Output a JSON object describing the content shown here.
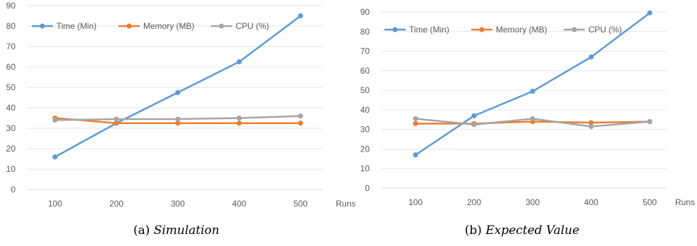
{
  "chart_data": [
    {
      "type": "line",
      "x": [
        100,
        200,
        300,
        400,
        500
      ],
      "xlabel": "Runs",
      "ylim": [
        0,
        90
      ],
      "yticks": [
        0,
        10,
        20,
        30,
        40,
        50,
        60,
        70,
        80,
        90
      ],
      "grid": true,
      "legend": "top-left",
      "caption_prefix": "(a)",
      "caption_title": "Simulation",
      "series": [
        {
          "name": "Time (Min)",
          "color": "#5B9BD5",
          "values": [
            16,
            32.5,
            47.5,
            62.5,
            85
          ]
        },
        {
          "name": "Memory (MB)",
          "color": "#ED7D31",
          "values": [
            35,
            32.5,
            32.5,
            32.5,
            32.5
          ]
        },
        {
          "name": "CPU (%)",
          "color": "#A5A5A5",
          "values": [
            34,
            34.5,
            34.5,
            35,
            36
          ]
        }
      ]
    },
    {
      "type": "line",
      "x": [
        100,
        200,
        300,
        400,
        500
      ],
      "xlabel": "Runs",
      "ylim": [
        0,
        90
      ],
      "yticks": [
        0,
        10,
        20,
        30,
        40,
        50,
        60,
        70,
        80,
        90
      ],
      "grid": true,
      "legend": "top-left",
      "caption_prefix": "(b)",
      "caption_title": "Expected Value",
      "series": [
        {
          "name": "Time (Min)",
          "color": "#5B9BD5",
          "values": [
            17,
            37,
            49.5,
            67,
            89.5
          ]
        },
        {
          "name": "Memory (MB)",
          "color": "#ED7D31",
          "values": [
            33,
            33,
            34,
            33.5,
            34
          ]
        },
        {
          "name": "CPU (%)",
          "color": "#A5A5A5",
          "values": [
            35.5,
            32.5,
            35.5,
            31.5,
            34
          ]
        }
      ]
    }
  ]
}
